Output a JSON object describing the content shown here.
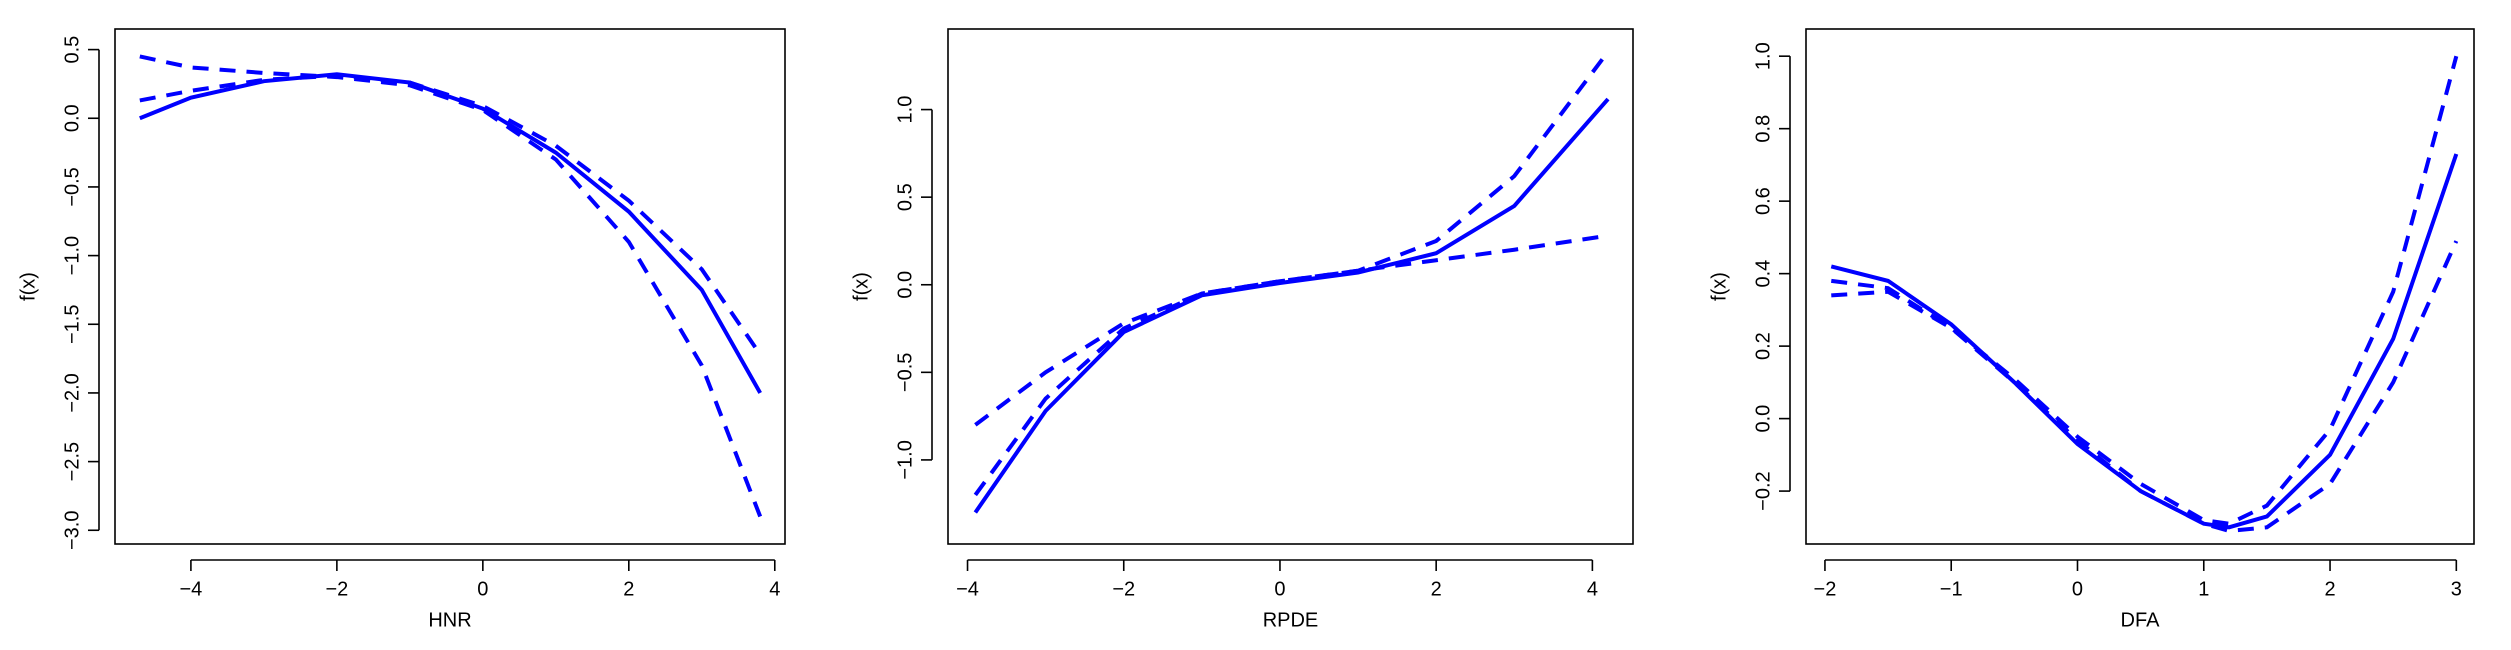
{
  "chart_data": [
    {
      "type": "line",
      "xlabel": "HNR",
      "ylabel": "f(x)",
      "x": [
        -4.7,
        -4,
        -3,
        -2,
        -1,
        0,
        1,
        2,
        3,
        3.8
      ],
      "series": [
        {
          "color": "#0000ff",
          "dashed": false,
          "values": [
            0.0,
            0.15,
            0.27,
            0.32,
            0.26,
            0.07,
            -0.25,
            -0.68,
            -1.25,
            -2.0
          ]
        },
        {
          "color": "#0000ff",
          "dashed": true,
          "values": [
            0.13,
            0.2,
            0.28,
            0.31,
            0.26,
            0.09,
            -0.2,
            -0.6,
            -1.1,
            -1.72
          ]
        },
        {
          "color": "#0000ff",
          "dashed": true,
          "values": [
            0.45,
            0.37,
            0.33,
            0.3,
            0.24,
            0.06,
            -0.3,
            -0.9,
            -1.8,
            -2.9
          ]
        }
      ],
      "xlim": [
        -5.04,
        4.14
      ],
      "xticks": [
        {
          "value": -4,
          "label": "−4"
        },
        {
          "value": -2,
          "label": "−2"
        },
        0,
        2,
        4
      ],
      "ylim": [
        -3.1,
        0.65
      ],
      "yticks": [
        {
          "value": -3,
          "label": "−3.0"
        },
        {
          "value": -2.5,
          "label": "−2.5"
        },
        {
          "value": -2,
          "label": "−2.0"
        },
        {
          "value": -1.5,
          "label": "−1.5"
        },
        {
          "value": -1,
          "label": "−1.0"
        },
        {
          "value": -0.5,
          "label": "−0.5"
        },
        {
          "value": 0,
          "label": "0.0"
        },
        0.5
      ]
    },
    {
      "type": "line",
      "xlabel": "RPDE",
      "ylabel": "f(x)",
      "x": [
        -3.9,
        -3,
        -2,
        -1,
        0,
        1,
        2,
        3,
        4.2
      ],
      "series": [
        {
          "color": "#0000ff",
          "dashed": false,
          "values": [
            -1.3,
            -0.72,
            -0.27,
            -0.06,
            0.01,
            0.07,
            0.18,
            0.45,
            1.06
          ]
        },
        {
          "color": "#0000ff",
          "dashed": true,
          "values": [
            -1.2,
            -0.65,
            -0.25,
            -0.05,
            0.02,
            0.08,
            0.25,
            0.62,
            1.33
          ]
        },
        {
          "color": "#0000ff",
          "dashed": true,
          "values": [
            -0.8,
            -0.5,
            -0.22,
            -0.05,
            0.02,
            0.08,
            0.14,
            0.2,
            0.28
          ]
        }
      ],
      "xlim": [
        -4.25,
        4.52
      ],
      "xticks": [
        {
          "value": -4,
          "label": "−4"
        },
        {
          "value": -2,
          "label": "−2"
        },
        0,
        2,
        4
      ],
      "ylim": [
        -1.48,
        1.46
      ],
      "yticks": [
        {
          "value": -1,
          "label": "−1.0"
        },
        {
          "value": -0.5,
          "label": "−0.5"
        },
        {
          "value": 0,
          "label": "0.0"
        },
        0.5,
        {
          "value": 1,
          "label": "1.0"
        }
      ]
    },
    {
      "type": "line",
      "xlabel": "DFA",
      "ylabel": "f(x)",
      "x": [
        -1.95,
        -1.5,
        -1,
        -0.5,
        0,
        0.5,
        1,
        1.2,
        1.5,
        2,
        2.5,
        3
      ],
      "series": [
        {
          "color": "#0000ff",
          "dashed": false,
          "values": [
            0.42,
            0.38,
            0.26,
            0.1,
            -0.07,
            -0.2,
            -0.29,
            -0.3,
            -0.27,
            -0.1,
            0.22,
            0.73
          ]
        },
        {
          "color": "#0000ff",
          "dashed": true,
          "values": [
            0.38,
            0.36,
            0.25,
            0.11,
            -0.05,
            -0.18,
            -0.28,
            -0.29,
            -0.24,
            -0.03,
            0.35,
            1.0
          ]
        },
        {
          "color": "#0000ff",
          "dashed": true,
          "values": [
            0.34,
            0.35,
            0.25,
            0.1,
            -0.06,
            -0.2,
            -0.29,
            -0.31,
            -0.3,
            -0.18,
            0.1,
            0.49
          ]
        }
      ],
      "xlim": [
        -2.15,
        3.14
      ],
      "xticks": [
        {
          "value": -2,
          "label": "−2"
        },
        {
          "value": -1,
          "label": "−1"
        },
        0,
        1,
        2,
        3
      ],
      "ylim": [
        -0.346,
        1.075
      ],
      "yticks": [
        {
          "value": -0.2,
          "label": "−0.2"
        },
        {
          "value": 0,
          "label": "0.0"
        },
        0.2,
        0.4,
        0.6,
        0.8,
        {
          "value": 1,
          "label": "1.0"
        }
      ]
    }
  ]
}
